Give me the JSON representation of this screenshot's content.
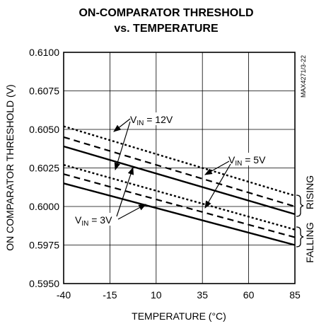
{
  "chart_data": {
    "type": "line",
    "title_line1": "ON-COMPARATOR THRESHOLD",
    "title_line2": "vs. TEMPERATURE",
    "xlabel": "TEMPERATURE (°C)",
    "ylabel": "ON COMPARATOR THRESHOLD (V)",
    "xlim": [
      -40,
      85
    ],
    "ylim": [
      0.595,
      0.61
    ],
    "xticks": [
      -40,
      -15,
      10,
      35,
      60,
      85
    ],
    "yticks": [
      "0.5950",
      "0.5975",
      "0.6000",
      "0.6025",
      "0.6050",
      "0.6075",
      "0.6100"
    ],
    "grid": true,
    "series": [
      {
        "style": "dotted",
        "x": [
          -40,
          85
        ],
        "y": [
          0.6052,
          0.6007
        ]
      },
      {
        "style": "dashed",
        "x": [
          -40,
          85
        ],
        "y": [
          0.6045,
          0.6
        ]
      },
      {
        "style": "solid",
        "x": [
          -40,
          85
        ],
        "y": [
          0.6039,
          0.5995
        ]
      },
      {
        "style": "dotted",
        "x": [
          -40,
          85
        ],
        "y": [
          0.6027,
          0.5985
        ]
      },
      {
        "style": "dashed",
        "x": [
          -40,
          85
        ],
        "y": [
          0.6021,
          0.598
        ]
      },
      {
        "style": "solid",
        "x": [
          -40,
          85
        ],
        "y": [
          0.6015,
          0.5975
        ]
      }
    ],
    "annotations": [
      {
        "id": "vin12",
        "prefix": "V",
        "sub": "IN",
        "suffix": " = 12V"
      },
      {
        "id": "vin5",
        "prefix": "V",
        "sub": "IN",
        "suffix": " = 5V"
      },
      {
        "id": "vin3",
        "prefix": "V",
        "sub": "IN",
        "suffix": " = 3V"
      }
    ],
    "group_labels": {
      "rising": "RISING",
      "falling": "FALLING"
    },
    "part_code": "MAX4271/3-22"
  }
}
